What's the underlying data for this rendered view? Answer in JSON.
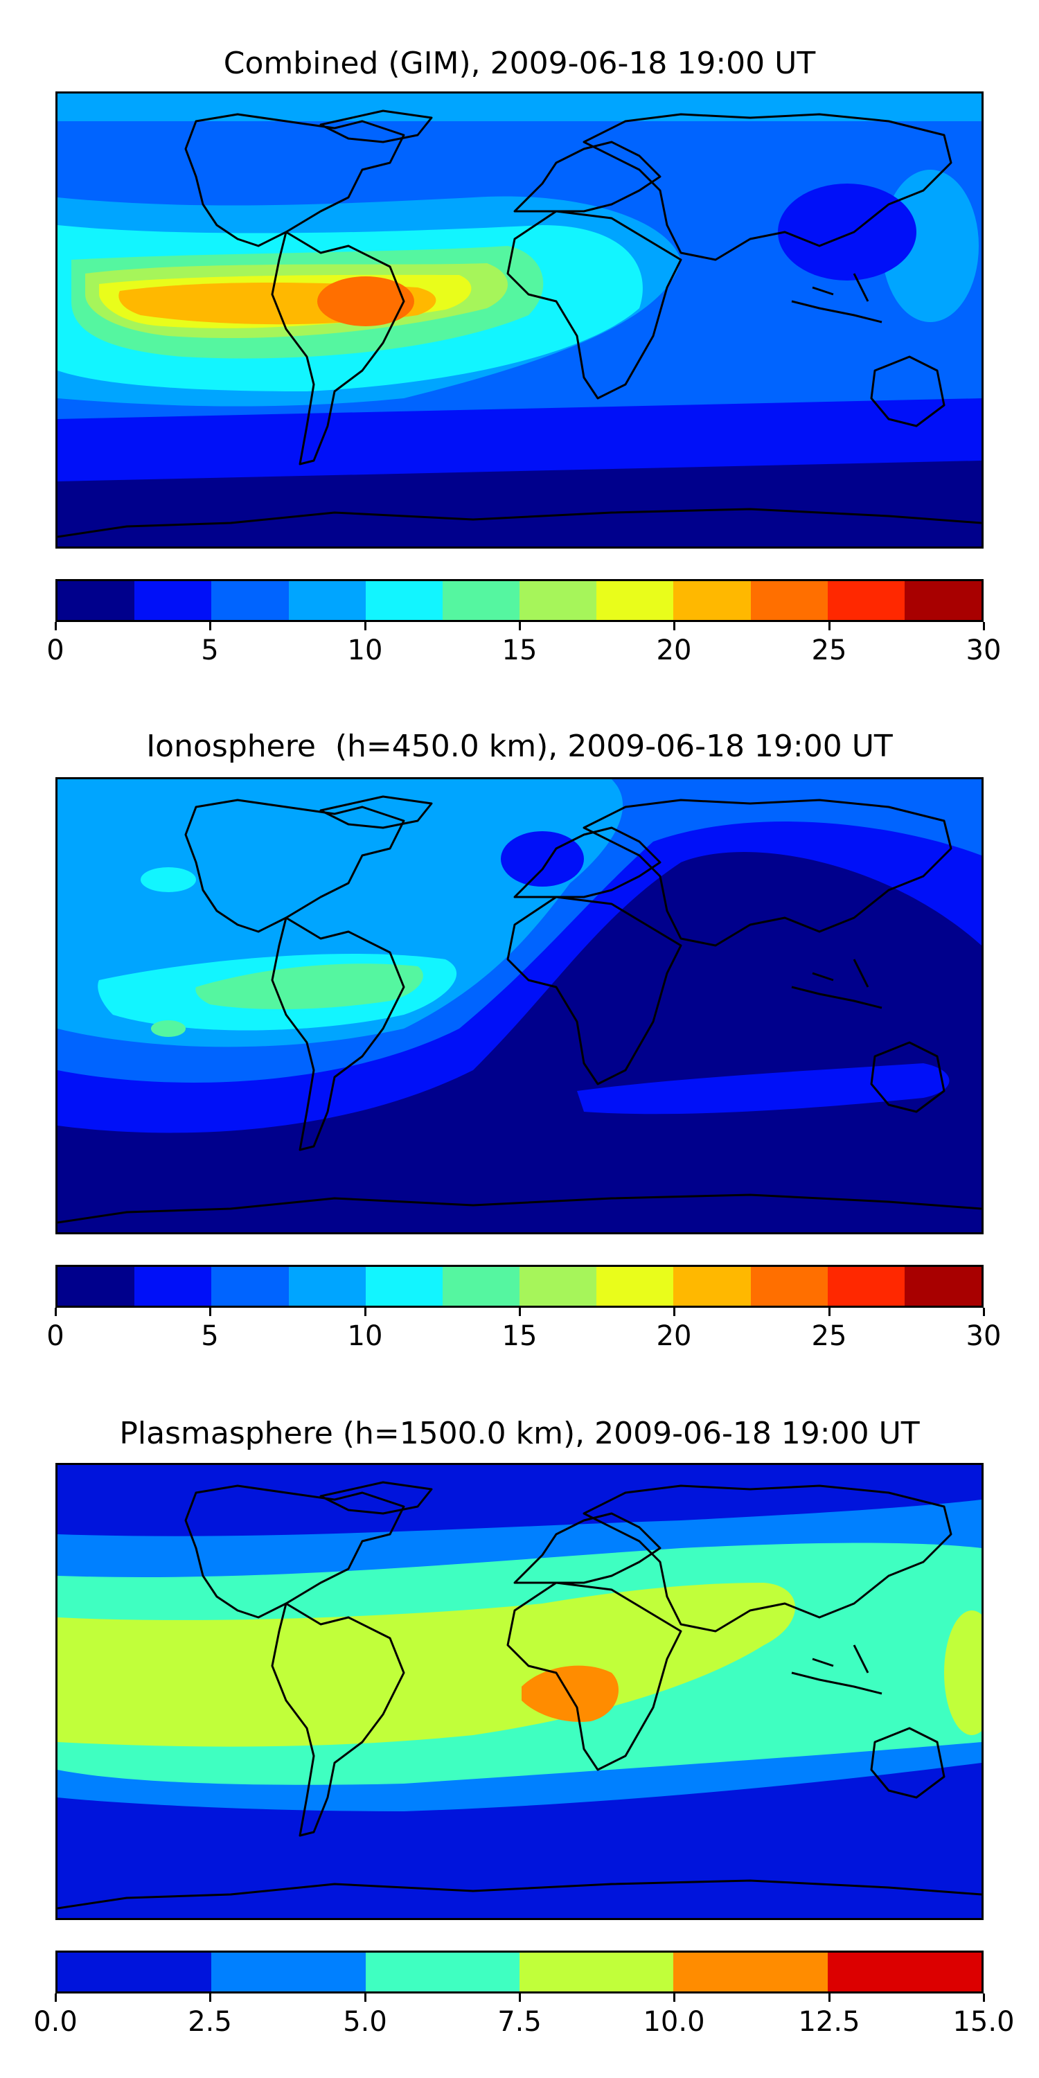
{
  "panels": [
    {
      "title": "Combined (GIM), 2009-06-18 19:00 UT",
      "colorbar": {
        "ticks": [
          "0",
          "5",
          "10",
          "15",
          "20",
          "25",
          "30"
        ],
        "colors": [
          "#00008c",
          "#0010f8",
          "#0064ff",
          "#00a5ff",
          "#12f5ff",
          "#55f6a0",
          "#a6f55a",
          "#e9fd1b",
          "#ffb800",
          "#ff6f00",
          "#ff2800",
          "#a80000"
        ]
      }
    },
    {
      "title": "Ionosphere  (h=450.0 km), 2009-06-18 19:00 UT",
      "colorbar": {
        "ticks": [
          "0",
          "5",
          "10",
          "15",
          "20",
          "25",
          "30"
        ],
        "colors": [
          "#00008c",
          "#0010f8",
          "#0064ff",
          "#00a5ff",
          "#12f5ff",
          "#55f6a0",
          "#a6f55a",
          "#e9fd1b",
          "#ffb800",
          "#ff6f00",
          "#ff2800",
          "#a80000"
        ]
      }
    },
    {
      "title": "Plasmasphere (h=1500.0 km), 2009-06-18 19:00 UT",
      "colorbar": {
        "ticks": [
          "0.0",
          "2.5",
          "5.0",
          "7.5",
          "10.0",
          "12.5",
          "15.0"
        ],
        "colors": [
          "#0014dc",
          "#0080ff",
          "#3fffc1",
          "#c1ff3a",
          "#ff8c00",
          "#dc0000"
        ]
      }
    }
  ]
}
